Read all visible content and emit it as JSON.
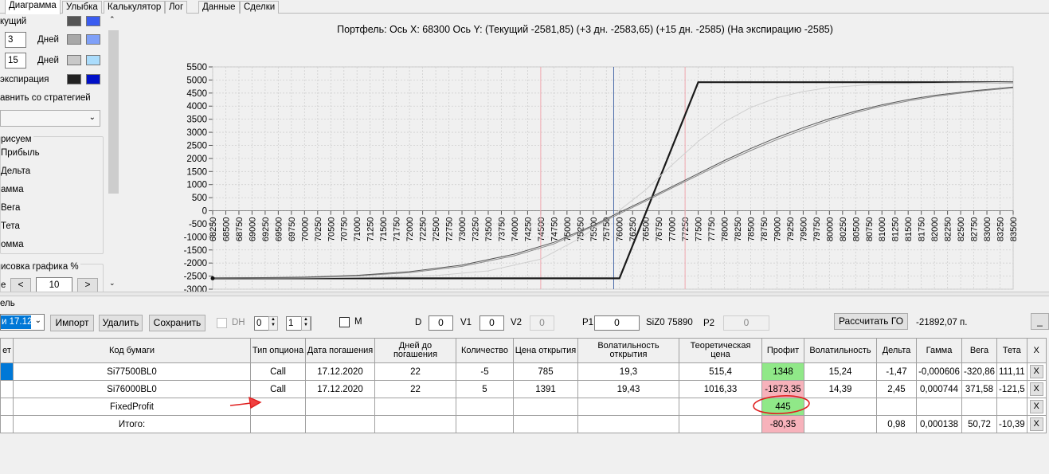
{
  "tabs": [
    "Диаграмма",
    "Улыбка",
    "Калькулятор",
    "Лог",
    "Данные",
    "Сделки"
  ],
  "left_panel": {
    "current_label": "кущий",
    "days1_value": "3",
    "days2_value": "15",
    "days_label": "Дней",
    "expiry_label": "экспирация",
    "compare_label": "авнить со стратегией",
    "group_title": "рисуем",
    "checkboxes": [
      "Прибыль",
      "Дельта",
      "амма",
      "Вега",
      "Тета",
      "омма"
    ],
    "render_label": "исовка графика %",
    "render_prefix": "е",
    "render_value": "10",
    "colors": {
      "current": [
        "#555555",
        "#3a5cf0"
      ],
      "days1": [
        "#a8a8a8",
        "#7fa0f8"
      ],
      "days2": [
        "#c8c8c8",
        "#aadcfc"
      ],
      "expiry": [
        "#222222",
        "#0010c8"
      ]
    }
  },
  "chart_title": "Портфель: Ось X: 68300 Ось Y:  (Текущий -2581,85)  (+3 дн. -2583,65)  (+15 дн. -2585)  (На экспирацию -2585)",
  "chart_data": {
    "type": "line",
    "title": "Портфель: Ось X: 68300 Ось Y:  (Текущий -2581,85)  (+3 дн. -2583,65)  (+15 дн. -2585)  (На экспирацию -2585)",
    "xlim": [
      68250,
      83500
    ],
    "ylim": [
      -3000,
      5500
    ],
    "x_ticks": [
      68250,
      68500,
      68750,
      69000,
      69250,
      69500,
      69750,
      70000,
      70250,
      70500,
      70750,
      71000,
      71250,
      71500,
      71750,
      72000,
      72250,
      72500,
      72750,
      73000,
      73250,
      73500,
      73750,
      74000,
      74250,
      74500,
      74750,
      75000,
      75250,
      75500,
      75750,
      76000,
      76250,
      76500,
      76750,
      77000,
      77250,
      77500,
      77750,
      78000,
      78250,
      78500,
      78750,
      79000,
      79250,
      79500,
      79750,
      80000,
      80250,
      80500,
      80750,
      81000,
      81250,
      81500,
      81750,
      82000,
      82250,
      82500,
      82750,
      83000,
      83250,
      83500
    ],
    "y_ticks": [
      5500,
      5000,
      4500,
      4000,
      3500,
      3000,
      2500,
      2000,
      1500,
      1000,
      500,
      0,
      -500,
      -1000,
      -1500,
      -2000,
      -2500,
      -3000
    ],
    "vertical_lines": [
      {
        "x": 74500,
        "color": "#f0a8b0"
      },
      {
        "x": 75890,
        "color": "#4a6aa8"
      },
      {
        "x": 77250,
        "color": "#f0a8b0"
      }
    ],
    "series": [
      {
        "color": "#1a1a1a",
        "width": 2.2,
        "points": [
          [
            68250,
            -2585
          ],
          [
            76000,
            -2585
          ],
          [
            77500,
            4915
          ],
          [
            83500,
            4915
          ]
        ]
      },
      {
        "color": "#cfcfcf",
        "width": 1,
        "points": [
          [
            68250,
            -2580
          ],
          [
            70000,
            -2570
          ],
          [
            71500,
            -2540
          ],
          [
            72500,
            -2480
          ],
          [
            73500,
            -2300
          ],
          [
            74500,
            -1850
          ],
          [
            75250,
            -1050
          ],
          [
            75890,
            -150
          ],
          [
            76500,
            800
          ],
          [
            77000,
            1750
          ],
          [
            77500,
            2650
          ],
          [
            78000,
            3400
          ],
          [
            78500,
            3950
          ],
          [
            79000,
            4320
          ],
          [
            79500,
            4560
          ],
          [
            80000,
            4710
          ],
          [
            81000,
            4850
          ],
          [
            83500,
            4915
          ]
        ]
      },
      {
        "color": "#8a8a8a",
        "width": 1,
        "points": [
          [
            68250,
            -2585
          ],
          [
            70000,
            -2550
          ],
          [
            71000,
            -2490
          ],
          [
            72000,
            -2370
          ],
          [
            73000,
            -2130
          ],
          [
            74000,
            -1720
          ],
          [
            74750,
            -1270
          ],
          [
            75500,
            -600
          ],
          [
            75890,
            -220
          ],
          [
            76500,
            370
          ],
          [
            77000,
            870
          ],
          [
            77500,
            1360
          ],
          [
            78000,
            1850
          ],
          [
            78500,
            2300
          ],
          [
            79000,
            2720
          ],
          [
            79500,
            3100
          ],
          [
            80000,
            3450
          ],
          [
            80500,
            3750
          ],
          [
            81000,
            4000
          ],
          [
            81500,
            4200
          ],
          [
            82000,
            4370
          ],
          [
            82750,
            4560
          ],
          [
            83500,
            4700
          ]
        ]
      },
      {
        "color": "#555555",
        "width": 1,
        "points": [
          [
            68250,
            -2582
          ],
          [
            70000,
            -2540
          ],
          [
            71000,
            -2470
          ],
          [
            72000,
            -2330
          ],
          [
            73000,
            -2080
          ],
          [
            74000,
            -1660
          ],
          [
            74750,
            -1210
          ],
          [
            75500,
            -560
          ],
          [
            75890,
            -170
          ],
          [
            76500,
            420
          ],
          [
            77000,
            920
          ],
          [
            77500,
            1420
          ],
          [
            78000,
            1920
          ],
          [
            78500,
            2380
          ],
          [
            79000,
            2800
          ],
          [
            79500,
            3180
          ],
          [
            80000,
            3520
          ],
          [
            80500,
            3810
          ],
          [
            81000,
            4050
          ],
          [
            81500,
            4250
          ],
          [
            82000,
            4410
          ],
          [
            82750,
            4590
          ],
          [
            83500,
            4730
          ]
        ]
      }
    ]
  },
  "toolbar": {
    "partial_label": "ель",
    "combo_value": "и 17.12",
    "import_label": "Импорт",
    "delete_label": "Удалить",
    "save_label": "Сохранить",
    "dh_label": "DH",
    "spin1": "0",
    "spin2": "1",
    "m_label": "M",
    "d_label": "D",
    "d_value": "0",
    "v1_label": "V1",
    "v1_value": "0",
    "v2_label": "V2",
    "v2_value": "0",
    "p1_label": "P1",
    "p1_value": "0",
    "siz_label": "SiZ0 75890",
    "p2_label": "P2",
    "p2_value": "0",
    "calc_label": "Рассчитать ГО",
    "go_value": "-21892,07 п.",
    "min_label": "_"
  },
  "table": {
    "headers": [
      "ет",
      "Код бумаги",
      "Тип опциона",
      "Дата погашения",
      "Дней до погашения",
      "Количество",
      "Цена открытия",
      "Волатильность открытия",
      "Теоретическая цена",
      "Профит",
      "Волатильность",
      "Дельта",
      "Гамма",
      "Вега",
      "Тета",
      "X"
    ],
    "rows": [
      [
        "",
        "Si77500BL0",
        "Call",
        "17.12.2020",
        "22",
        "-5",
        "785",
        "19,3",
        "515,4",
        "1348",
        "15,24",
        "-1,47",
        "-0,000606",
        "-320,86",
        "111,11",
        "X"
      ],
      [
        "",
        "Si76000BL0",
        "Call",
        "17.12.2020",
        "22",
        "5",
        "1391",
        "19,43",
        "1016,33",
        "-1873,35",
        "14,39",
        "2,45",
        "0,000744",
        "371,58",
        "-121,5",
        "X"
      ],
      [
        "",
        "FixedProfit",
        "",
        "",
        "",
        "",
        "",
        "",
        "",
        "445",
        "",
        "",
        "",
        "",
        "",
        "X"
      ],
      [
        "",
        "Итого:",
        "",
        "",
        "",
        "",
        "",
        "",
        "",
        "-80,35",
        "",
        "0,98",
        "0,000138",
        "50,72",
        "-10,39",
        "X"
      ]
    ]
  }
}
